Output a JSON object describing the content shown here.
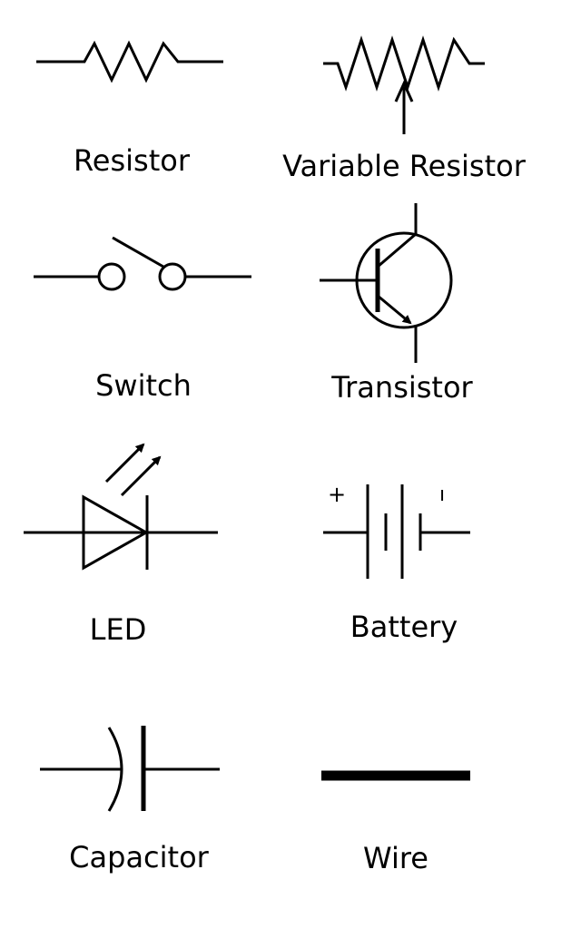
{
  "symbols": {
    "resistor": {
      "label": "Resistor"
    },
    "variable_resistor": {
      "label": "Variable Resistor"
    },
    "switch": {
      "label": "Switch"
    },
    "transistor": {
      "label": "Transistor"
    },
    "led": {
      "label": "LED"
    },
    "battery": {
      "label": "Battery",
      "plus_sign": "+",
      "minus_sign": "ı"
    },
    "capacitor": {
      "label": "Capacitor"
    },
    "wire": {
      "label": "Wire"
    }
  }
}
